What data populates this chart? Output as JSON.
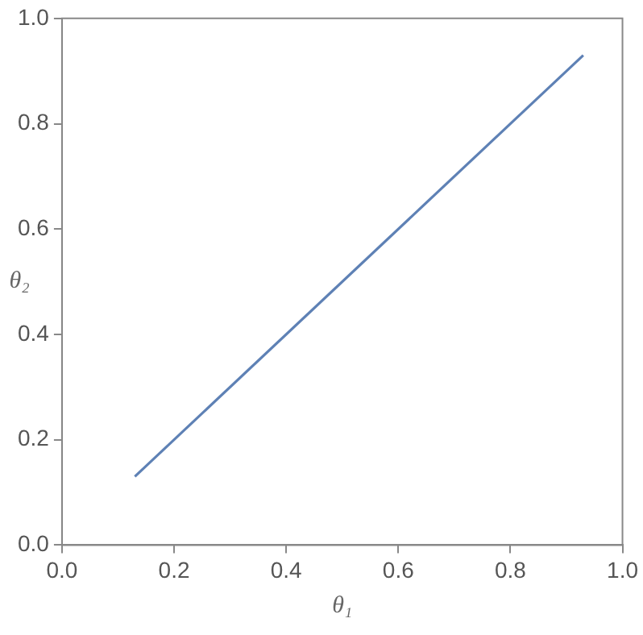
{
  "chart_data": {
    "type": "line",
    "xlabel": "θ₁",
    "ylabel": "θ₂",
    "series": [
      {
        "color": "#5e81b5",
        "x": [
          0.13,
          0.93
        ],
        "values": [
          0.13,
          0.93
        ]
      }
    ],
    "xlim": [
      0,
      1
    ],
    "ylim": [
      0,
      1
    ],
    "xticks": [
      {
        "value": 0,
        "label": "0.0"
      },
      0.2,
      0.4,
      0.6,
      0.8,
      {
        "value": 1,
        "label": "1.0"
      }
    ],
    "yticks": [
      {
        "value": 0,
        "label": "0.0"
      },
      0.2,
      0.4,
      0.6,
      0.8,
      {
        "value": 1,
        "label": "1.0"
      }
    ],
    "grid": false,
    "legend": false,
    "marker": "none",
    "line_style": "solid"
  }
}
